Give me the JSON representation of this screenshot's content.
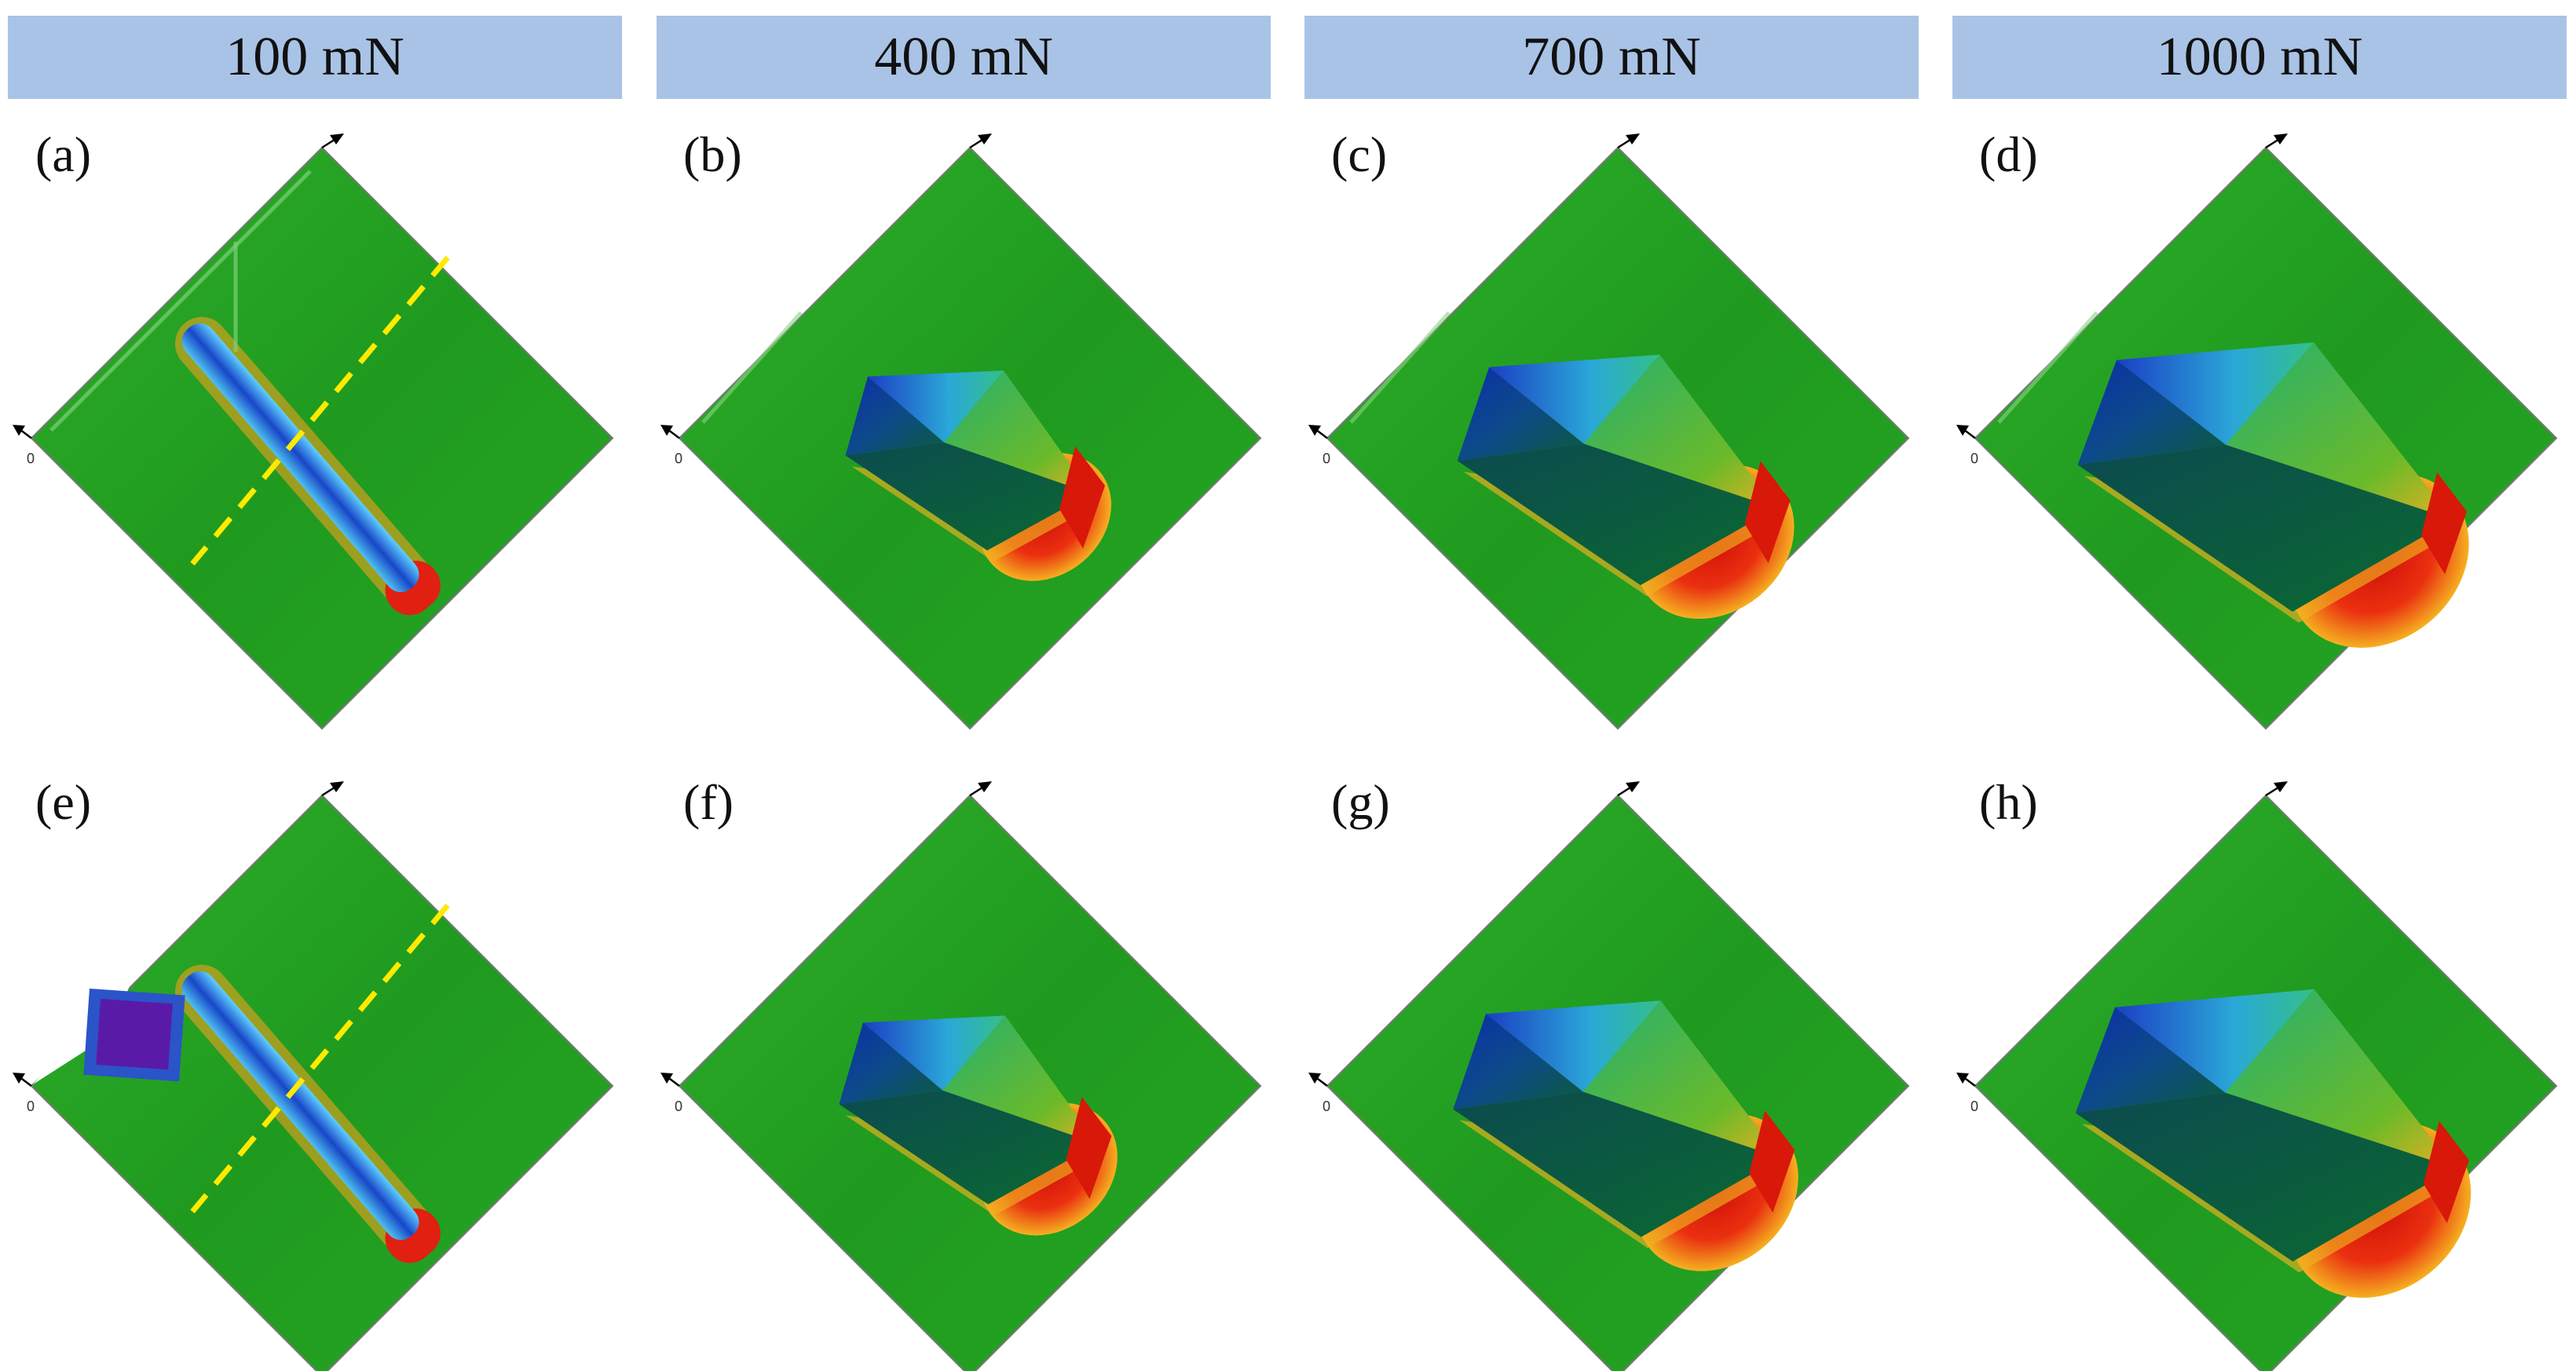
{
  "headers": [
    "100 mN",
    "400 mN",
    "700 mN",
    "1000 mN"
  ],
  "panels": [
    {
      "label": "(a)",
      "zero": "0",
      "type": "scratch",
      "mark": "none",
      "dashed": true
    },
    {
      "label": "(b)",
      "zero": "0",
      "type": "pit",
      "size": 0.55,
      "mark": "edge"
    },
    {
      "label": "(c)",
      "zero": "0",
      "type": "pit",
      "size": 0.72,
      "mark": "edge"
    },
    {
      "label": "(d)",
      "zero": "0",
      "type": "pit",
      "size": 0.85,
      "mark": "edge"
    },
    {
      "label": "(e)",
      "zero": "0",
      "type": "scratch",
      "mark": "square",
      "dashed": true
    },
    {
      "label": "(f)",
      "zero": "0",
      "type": "pit",
      "size": 0.58,
      "mark": "none"
    },
    {
      "label": "(g)",
      "zero": "0",
      "type": "pit",
      "size": 0.74,
      "mark": "none"
    },
    {
      "label": "(h)",
      "zero": "0",
      "type": "pit",
      "size": 0.86,
      "mark": "none"
    }
  ],
  "colors": {
    "header_bg": "#a9c3e6",
    "surface": "#1f9a1f",
    "surface_light": "#33b52e",
    "deep": "#0a2fa8",
    "mid": "#2aa8d8",
    "pileup": "#e02010",
    "pileup_warm": "#f2a020",
    "dashed_line": "#ffea00"
  }
}
